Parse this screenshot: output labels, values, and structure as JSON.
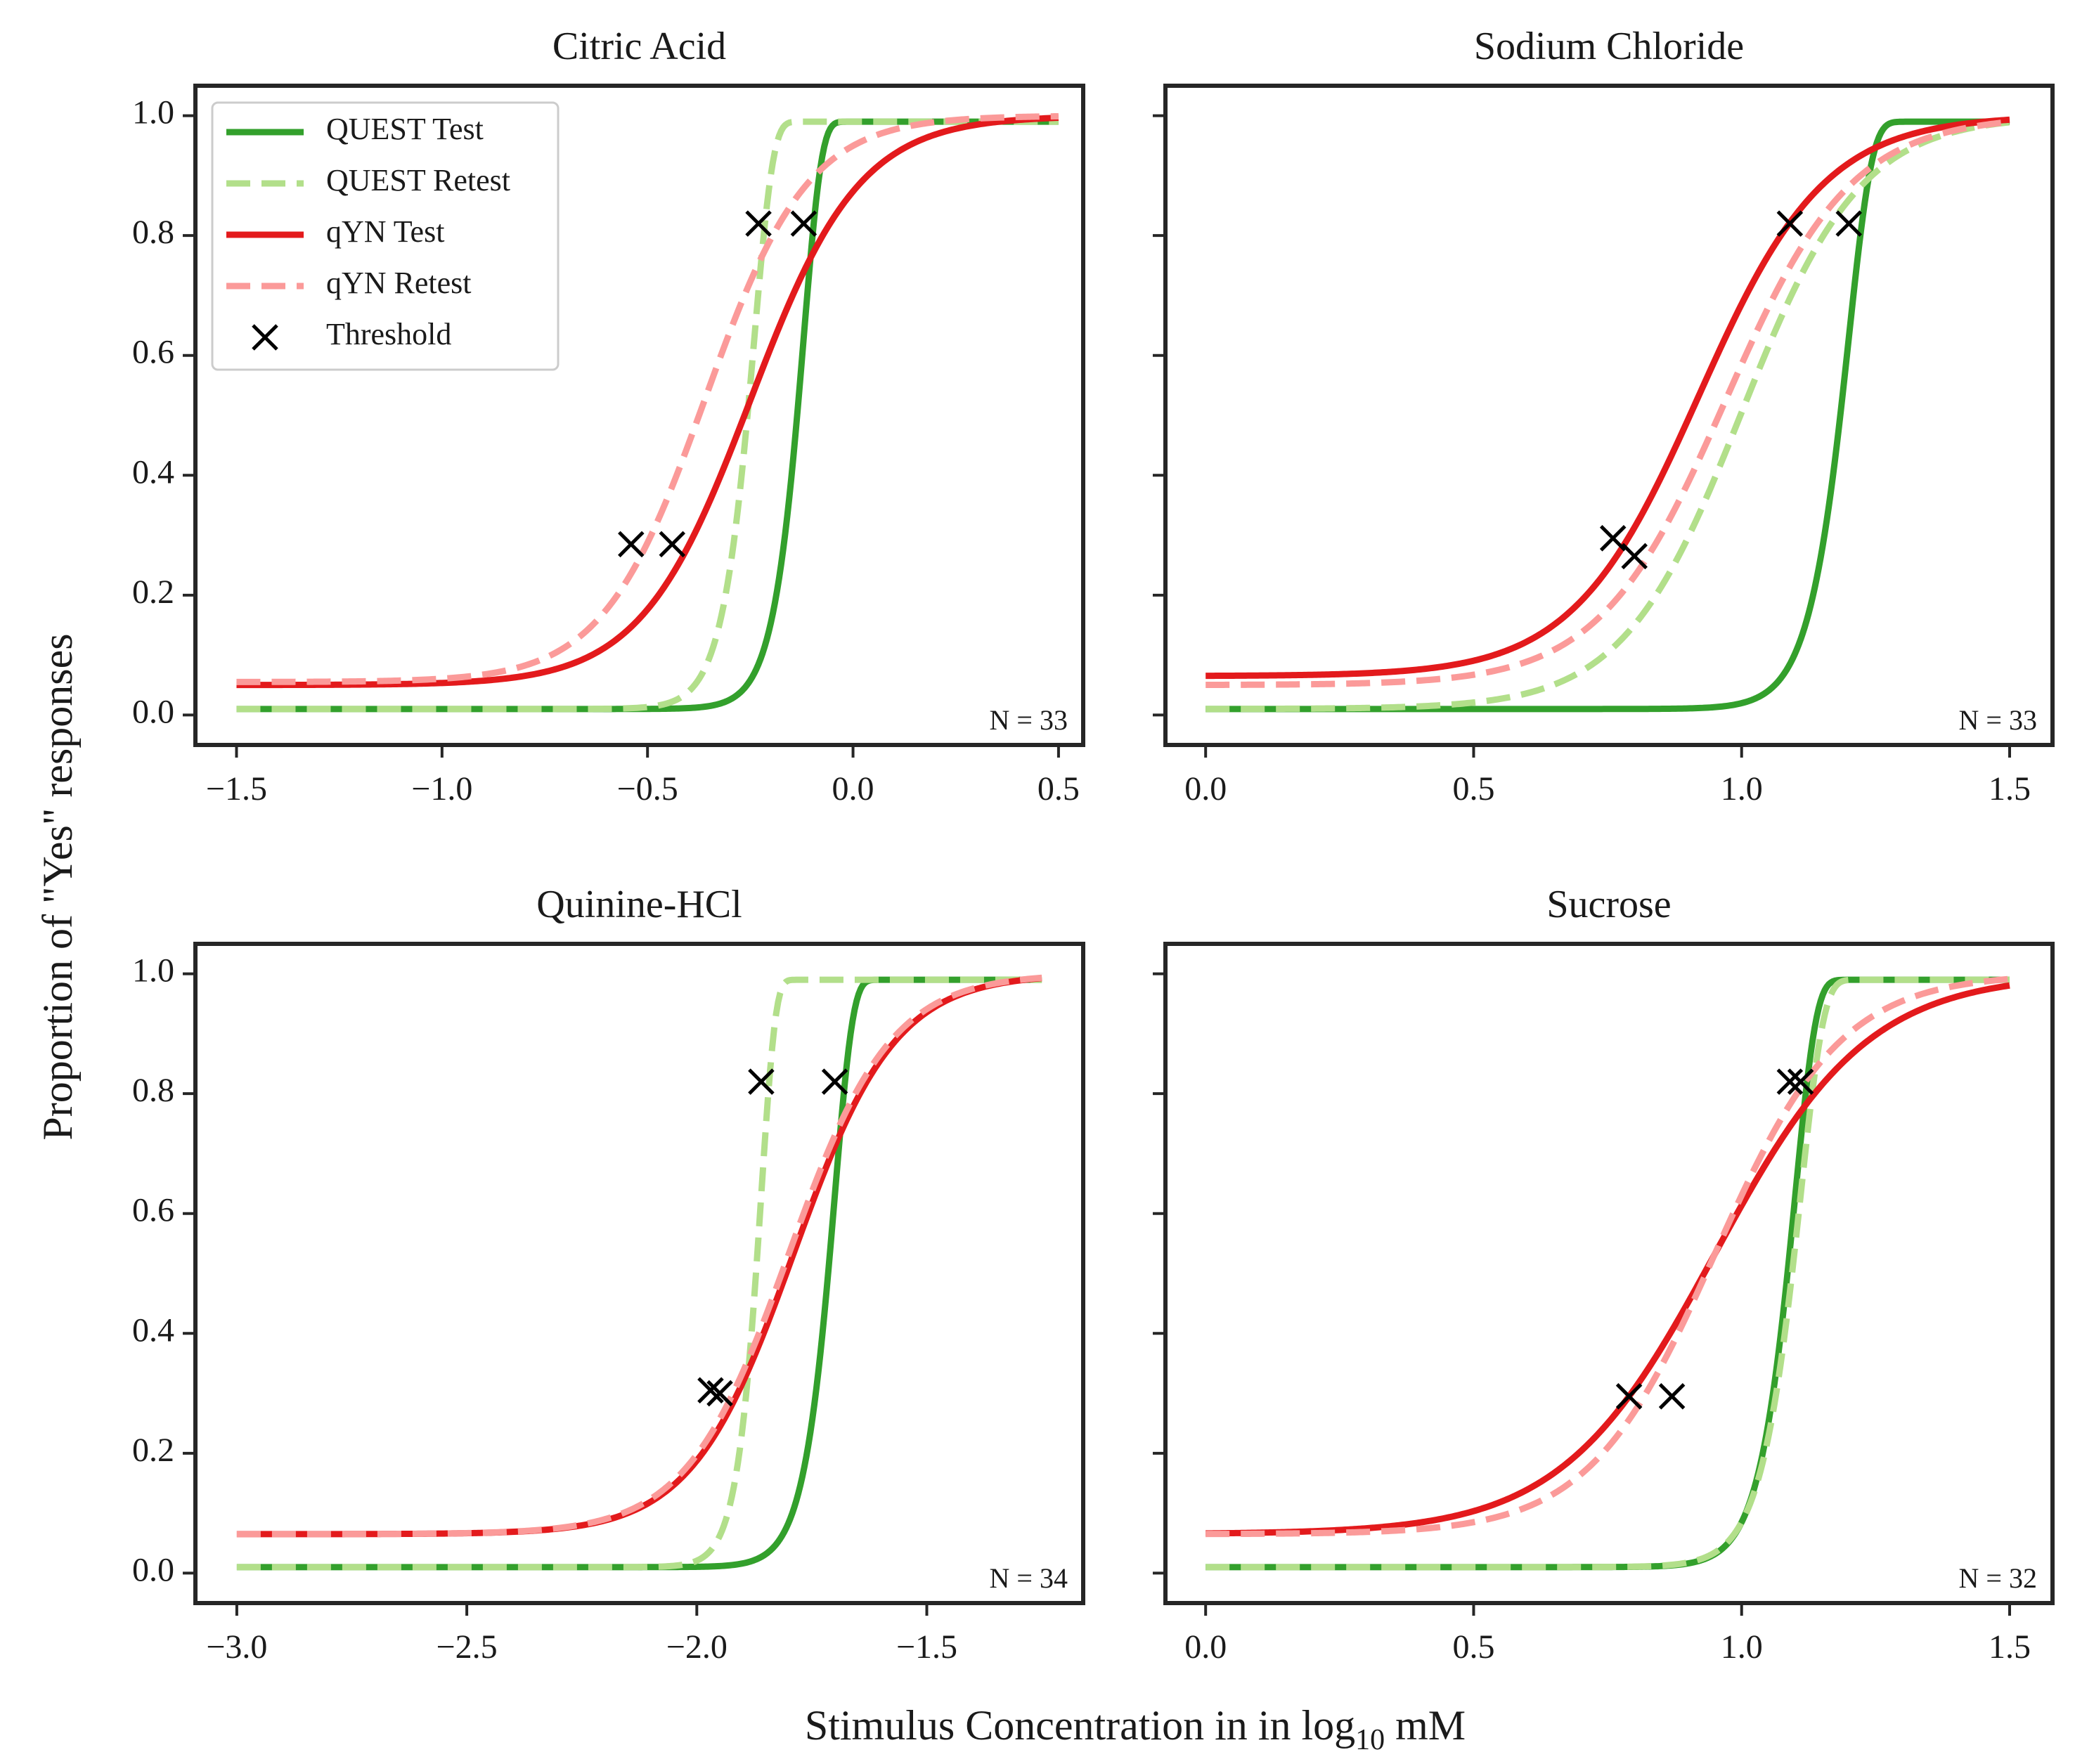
{
  "figure": {
    "ylabel": "Proportion of \"Yes\" responses",
    "xlabel_main": "Stimulus Concentration in in log",
    "xlabel_sub": "10",
    "xlabel_unit": " mM"
  },
  "legend": {
    "items": [
      {
        "label": "QUEST Test",
        "color": "#33a02c",
        "style": "solid"
      },
      {
        "label": "QUEST Retest",
        "color": "#b2df8a",
        "style": "dashed"
      },
      {
        "label": "qYN Test",
        "color": "#e31a1c",
        "style": "solid"
      },
      {
        "label": "qYN Retest",
        "color": "#fb9a99",
        "style": "dashed"
      },
      {
        "label": "Threshold",
        "color": "#000000",
        "style": "marker"
      }
    ]
  },
  "chart_data": [
    {
      "type": "line",
      "title": "Citric Acid",
      "n_label": "N = 33",
      "xlim": [
        -1.6,
        0.56
      ],
      "ylim": [
        -0.05,
        1.05
      ],
      "xticks": [
        -1.5,
        -1.0,
        -0.5,
        0.0,
        0.5
      ],
      "xtick_labels": [
        "−1.5",
        "−1.0",
        "−0.5",
        "0.0",
        "0.5"
      ],
      "yticks": [
        0.0,
        0.2,
        0.4,
        0.6,
        0.8,
        1.0
      ],
      "ytick_labels": [
        "0.0",
        "0.2",
        "0.4",
        "0.6",
        "0.8",
        "1.0"
      ],
      "show_yticklabels": true,
      "domain": [
        -1.5,
        0.5
      ],
      "series": [
        {
          "name": "QUEST Test",
          "model": "weibull",
          "alpha": -0.12,
          "beta": 10.0,
          "gamma": 0.01,
          "lambda": 0.01
        },
        {
          "name": "QUEST Retest",
          "model": "weibull",
          "alpha": -0.24,
          "beta": 9.5,
          "gamma": 0.01,
          "lambda": 0.01
        },
        {
          "name": "qYN Test",
          "model": "logistic",
          "alpha": -0.25,
          "beta": 7.5,
          "gamma": 0.05,
          "lambda": 0.0
        },
        {
          "name": "qYN Retest",
          "model": "logistic",
          "alpha": -0.36,
          "beta": 8.0,
          "gamma": 0.055,
          "lambda": 0.0
        }
      ],
      "thresholds": [
        {
          "x": -0.54,
          "y": 0.285
        },
        {
          "x": -0.44,
          "y": 0.285
        },
        {
          "x": -0.23,
          "y": 0.82
        },
        {
          "x": -0.12,
          "y": 0.82
        }
      ]
    },
    {
      "type": "line",
      "title": "Sodium Chloride",
      "n_label": "N = 33",
      "xlim": [
        -0.075,
        1.58
      ],
      "ylim": [
        -0.05,
        1.05
      ],
      "xticks": [
        0.0,
        0.5,
        1.0,
        1.5
      ],
      "xtick_labels": [
        "0.0",
        "0.5",
        "1.0",
        "1.5"
      ],
      "yticks": [
        0.0,
        0.2,
        0.4,
        0.6,
        0.8,
        1.0
      ],
      "ytick_labels": [
        "0.0",
        "0.2",
        "0.4",
        "0.6",
        "0.8",
        "1.0"
      ],
      "show_yticklabels": false,
      "domain": [
        0.0,
        1.5
      ],
      "series": [
        {
          "name": "QUEST Test",
          "model": "weibull",
          "alpha": 1.2,
          "beta": 10.0,
          "gamma": 0.01,
          "lambda": 0.01
        },
        {
          "name": "QUEST Retest",
          "model": "logistic",
          "alpha": 1.0,
          "beta": 9.0,
          "gamma": 0.01,
          "lambda": 0.0
        },
        {
          "name": "qYN Test",
          "model": "logistic",
          "alpha": 0.92,
          "beta": 8.5,
          "gamma": 0.065,
          "lambda": 0.0
        },
        {
          "name": "qYN Retest",
          "model": "logistic",
          "alpha": 0.97,
          "beta": 8.5,
          "gamma": 0.05,
          "lambda": 0.0
        }
      ],
      "thresholds": [
        {
          "x": 0.76,
          "y": 0.295
        },
        {
          "x": 0.8,
          "y": 0.265
        },
        {
          "x": 1.09,
          "y": 0.82
        },
        {
          "x": 1.2,
          "y": 0.82
        }
      ]
    },
    {
      "type": "line",
      "title": "Quinine-HCl",
      "n_label": "N = 34",
      "xlim": [
        -3.09,
        -1.16
      ],
      "ylim": [
        -0.05,
        1.05
      ],
      "xticks": [
        -3.0,
        -2.5,
        -2.0,
        -1.5
      ],
      "xtick_labels": [
        "−3.0",
        "−2.5",
        "−2.0",
        "−1.5"
      ],
      "yticks": [
        0.0,
        0.2,
        0.4,
        0.6,
        0.8,
        1.0
      ],
      "ytick_labels": [
        "0.0",
        "0.2",
        "0.4",
        "0.6",
        "0.8",
        "1.0"
      ],
      "show_yticklabels": true,
      "domain": [
        -3.0,
        -1.25
      ],
      "series": [
        {
          "name": "QUEST Test",
          "model": "weibull",
          "alpha": -1.7,
          "beta": 11.0,
          "gamma": 0.01,
          "lambda": 0.01
        },
        {
          "name": "QUEST Retest",
          "model": "weibull",
          "alpha": -1.86,
          "beta": 14.0,
          "gamma": 0.01,
          "lambda": 0.01
        },
        {
          "name": "qYN Test",
          "model": "logistic",
          "alpha": -1.79,
          "beta": 9.0,
          "gamma": 0.065,
          "lambda": 0.0
        },
        {
          "name": "qYN Retest",
          "model": "logistic",
          "alpha": -1.8,
          "beta": 9.0,
          "gamma": 0.065,
          "lambda": 0.0
        }
      ],
      "thresholds": [
        {
          "x": -1.97,
          "y": 0.305
        },
        {
          "x": -1.95,
          "y": 0.3
        },
        {
          "x": -1.86,
          "y": 0.82
        },
        {
          "x": -1.7,
          "y": 0.82
        }
      ]
    },
    {
      "type": "line",
      "title": "Sucrose",
      "n_label": "N = 32",
      "xlim": [
        -0.075,
        1.58
      ],
      "ylim": [
        -0.05,
        1.05
      ],
      "xticks": [
        0.0,
        0.5,
        1.0,
        1.5
      ],
      "xtick_labels": [
        "0.0",
        "0.5",
        "1.0",
        "1.5"
      ],
      "yticks": [
        0.0,
        0.2,
        0.4,
        0.6,
        0.8,
        1.0
      ],
      "ytick_labels": [
        "0.0",
        "0.2",
        "0.4",
        "0.6",
        "0.8",
        "1.0"
      ],
      "show_yticklabels": false,
      "domain": [
        0.0,
        1.5
      ],
      "series": [
        {
          "name": "QUEST Test",
          "model": "weibull",
          "alpha": 1.1,
          "beta": 11.0,
          "gamma": 0.01,
          "lambda": 0.01
        },
        {
          "name": "QUEST Retest",
          "model": "weibull",
          "alpha": 1.11,
          "beta": 10.0,
          "gamma": 0.01,
          "lambda": 0.01
        },
        {
          "name": "qYN Test",
          "model": "logistic",
          "alpha": 0.95,
          "beta": 7.0,
          "gamma": 0.065,
          "lambda": 0.0
        },
        {
          "name": "qYN Retest",
          "model": "logistic",
          "alpha": 0.95,
          "beta": 8.5,
          "gamma": 0.065,
          "lambda": 0.0
        }
      ],
      "thresholds": [
        {
          "x": 0.79,
          "y": 0.295
        },
        {
          "x": 0.87,
          "y": 0.295
        },
        {
          "x": 1.09,
          "y": 0.82
        },
        {
          "x": 1.11,
          "y": 0.82
        }
      ]
    }
  ]
}
